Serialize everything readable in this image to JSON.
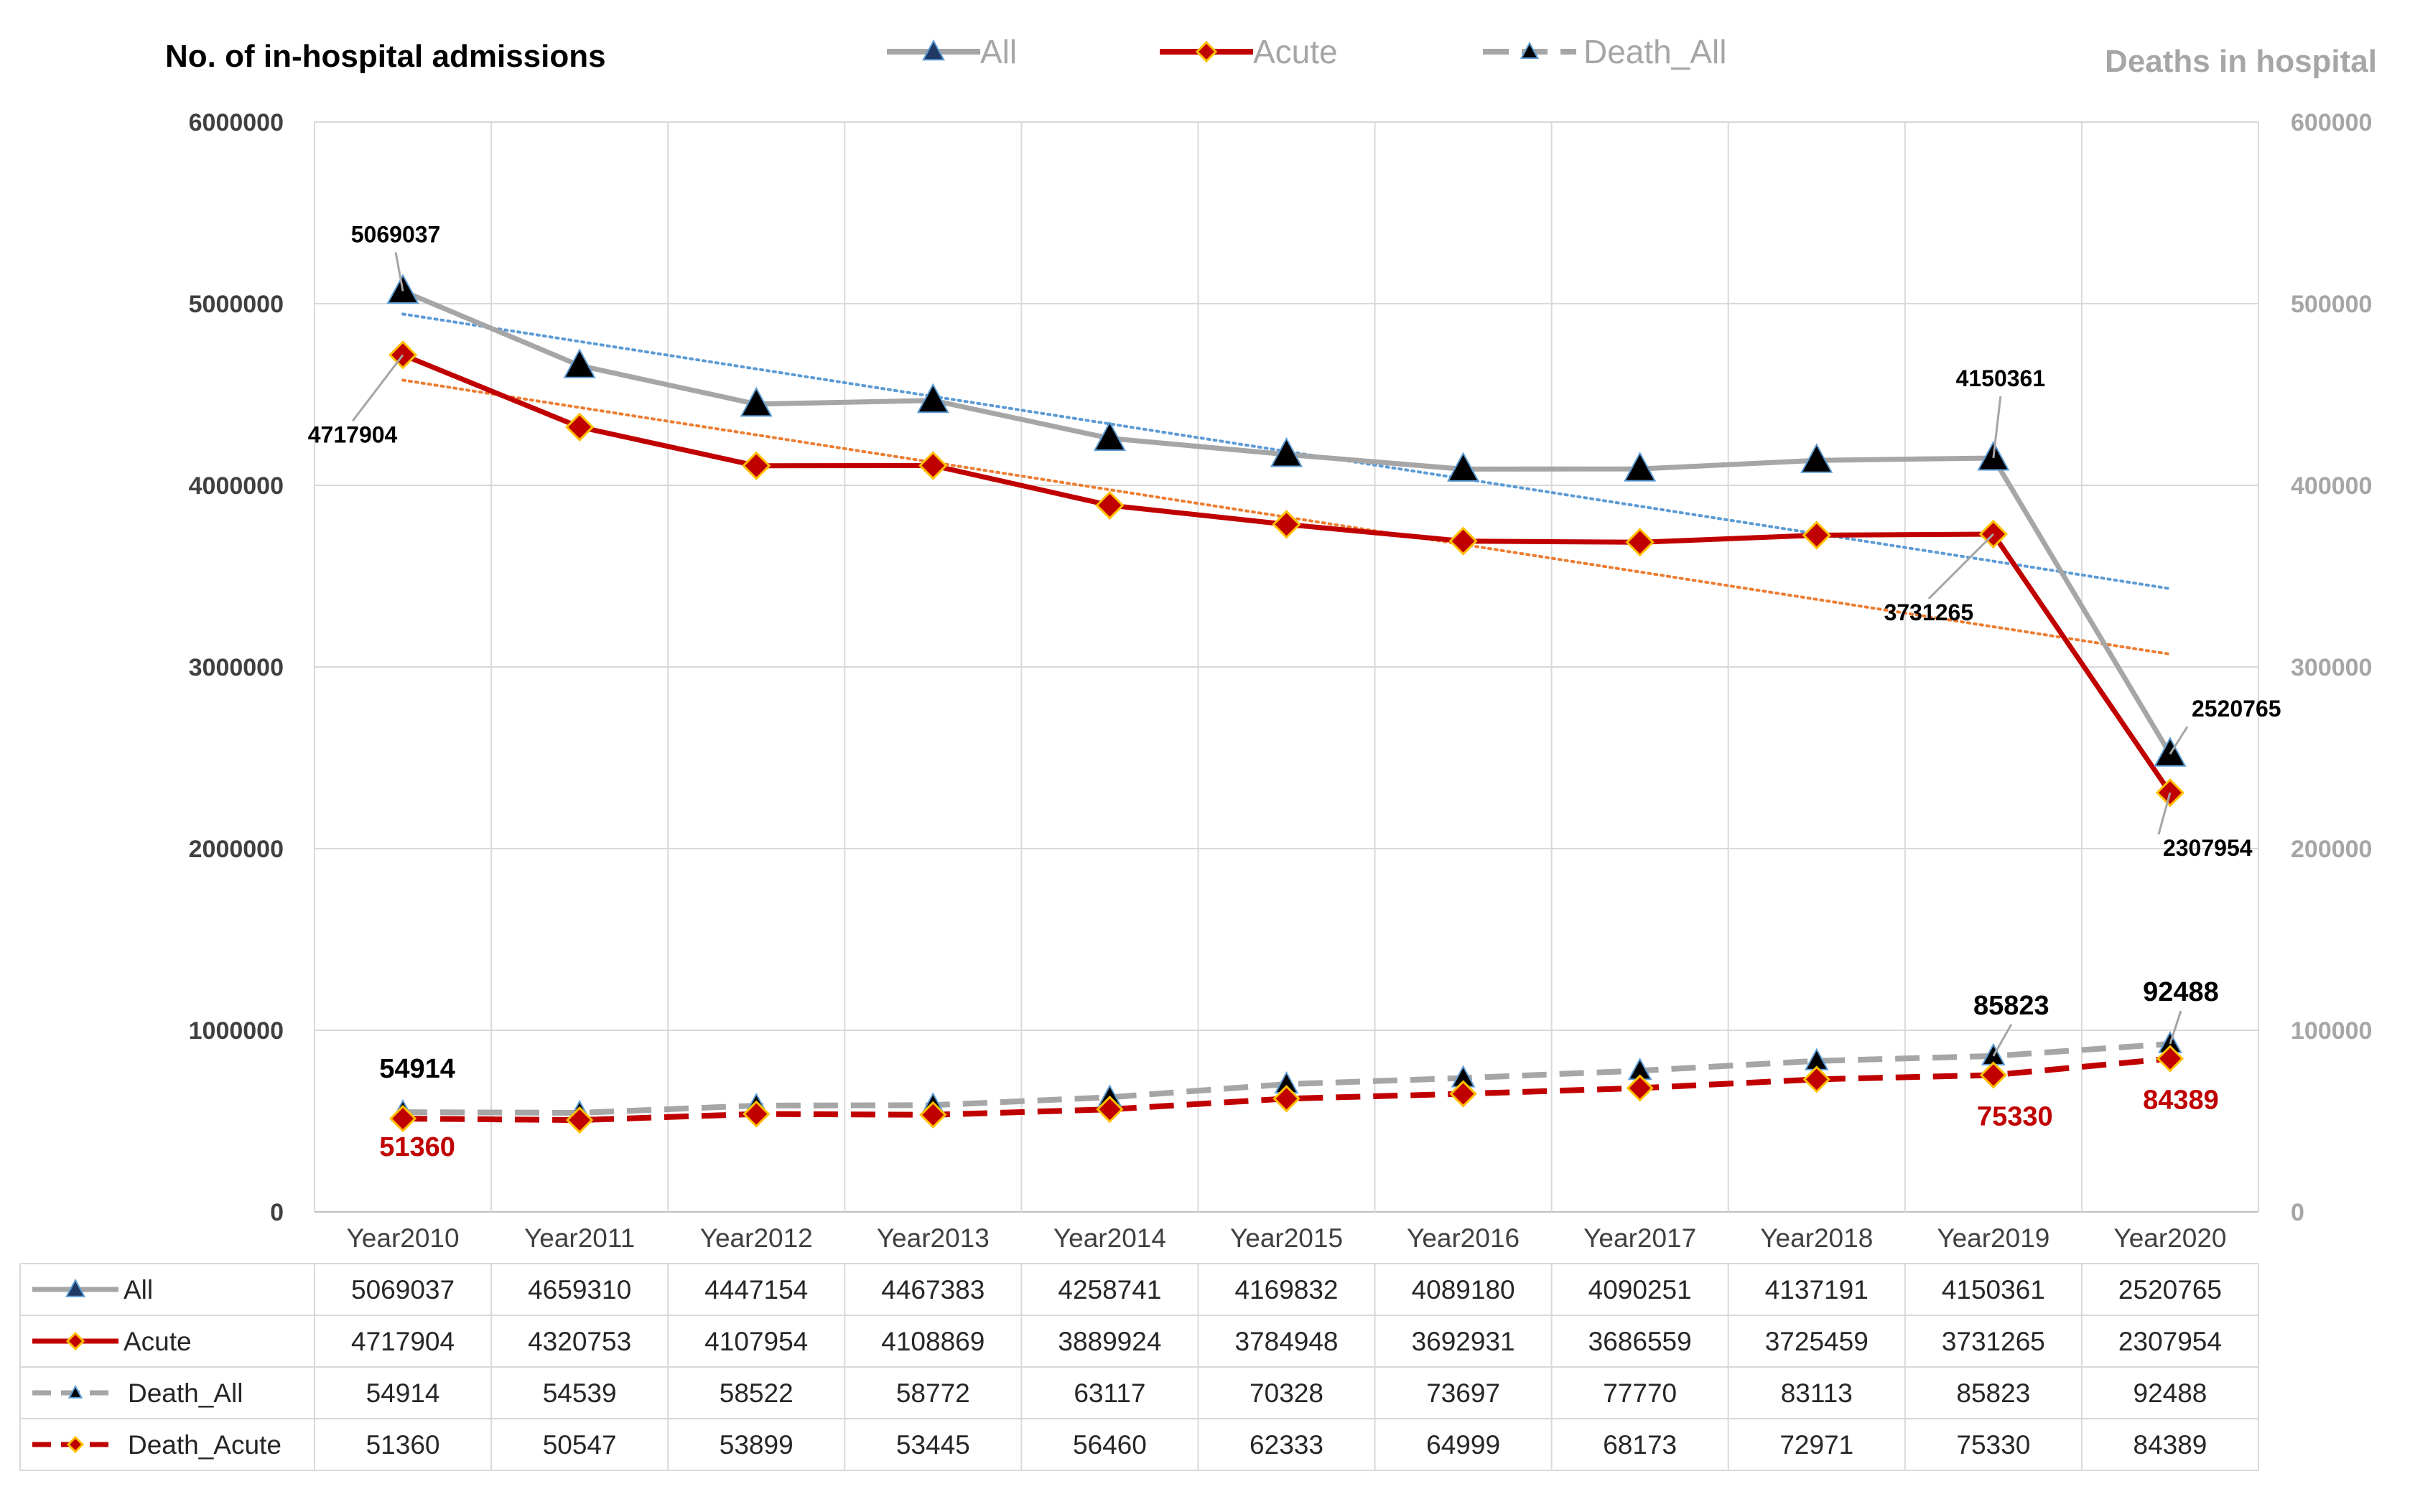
{
  "chart_data": {
    "type": "line",
    "title": "No. of in-hospital admissions",
    "right_axis_title": "Deaths in hospital",
    "categories": [
      "Year2010",
      "Year2011",
      "Year2012",
      "Year2013",
      "Year2014",
      "Year2015",
      "Year2016",
      "Year2017",
      "Year2018",
      "Year2019",
      "Year2020"
    ],
    "left_axis": {
      "min": 0,
      "max": 6000000,
      "step": 1000000,
      "ticks": [
        "0",
        "1000000",
        "2000000",
        "3000000",
        "4000000",
        "5000000",
        "6000000"
      ]
    },
    "right_axis": {
      "min": 0,
      "max": 600000,
      "step": 100000,
      "ticks": [
        "0",
        "100000",
        "200000",
        "300000",
        "400000",
        "500000",
        "600000"
      ]
    },
    "series": [
      {
        "name": "All",
        "axis": "left",
        "color": "#a6a6a6",
        "marker": "triangle",
        "dashed": false,
        "values": [
          5069037,
          4659310,
          4447154,
          4467383,
          4258741,
          4169832,
          4089180,
          4090251,
          4137191,
          4150361,
          2520765
        ],
        "trendline_color": "#5b9bd5"
      },
      {
        "name": "Acute",
        "axis": "left",
        "color": "#c00000",
        "marker": "diamond",
        "dashed": false,
        "values": [
          4717904,
          4320753,
          4107954,
          4108869,
          3889924,
          3784948,
          3692931,
          3686559,
          3725459,
          3731265,
          2307954
        ],
        "trendline_color": "#ed7d31"
      },
      {
        "name": "Death_All",
        "axis": "right",
        "color": "#a6a6a6",
        "marker": "triangle",
        "dashed": true,
        "values": [
          54914,
          54539,
          58522,
          58772,
          63117,
          70328,
          73697,
          77770,
          83113,
          85823,
          92488
        ]
      },
      {
        "name": "Death_Acute",
        "axis": "right",
        "color": "#c00000",
        "marker": "diamond",
        "dashed": true,
        "values": [
          51360,
          50547,
          53899,
          53445,
          56460,
          62333,
          64999,
          68173,
          72971,
          75330,
          84389
        ]
      }
    ],
    "legend": [
      "All",
      "Acute",
      "Death_All"
    ],
    "data_labels": [
      {
        "series": 0,
        "index": 0,
        "text": "5069037"
      },
      {
        "series": 1,
        "index": 0,
        "text": "4717904"
      },
      {
        "series": 0,
        "index": 9,
        "text": "4150361"
      },
      {
        "series": 1,
        "index": 9,
        "text": "3731265"
      },
      {
        "series": 0,
        "index": 10,
        "text": "2520765"
      },
      {
        "series": 1,
        "index": 10,
        "text": "2307954"
      },
      {
        "series": 2,
        "index": 0,
        "text": "54914"
      },
      {
        "series": 3,
        "index": 0,
        "text": "51360"
      },
      {
        "series": 2,
        "index": 9,
        "text": "85823"
      },
      {
        "series": 3,
        "index": 9,
        "text": "75330"
      },
      {
        "series": 2,
        "index": 10,
        "text": "92488"
      },
      {
        "series": 3,
        "index": 10,
        "text": "84389"
      }
    ],
    "table": {
      "rows": [
        {
          "label": "All",
          "values": [
            "5069037",
            "4659310",
            "4447154",
            "4467383",
            "4258741",
            "4169832",
            "4089180",
            "4090251",
            "4137191",
            "4150361",
            "2520765"
          ]
        },
        {
          "label": "Acute",
          "values": [
            "4717904",
            "4320753",
            "4107954",
            "4108869",
            "3889924",
            "3784948",
            "3692931",
            "3686559",
            "3725459",
            "3731265",
            "2307954"
          ]
        },
        {
          "label": "Death_All",
          "values": [
            "54914",
            "54539",
            "58522",
            "58772",
            "63117",
            "70328",
            "73697",
            "77770",
            "83113",
            "85823",
            "92488"
          ]
        },
        {
          "label": "Death_Acute",
          "values": [
            "51360",
            "50547",
            "53899",
            "53445",
            "56460",
            "62333",
            "64999",
            "68173",
            "72971",
            "75330",
            "84389"
          ]
        }
      ]
    }
  }
}
